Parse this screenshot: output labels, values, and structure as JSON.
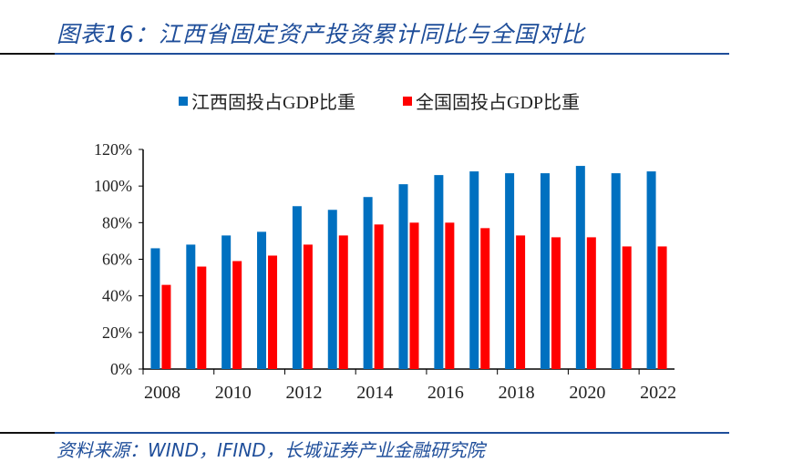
{
  "header": {
    "title": "图表16：江西省固定资产投资累计同比与全国对比"
  },
  "footer": {
    "source": "资料来源：WIND，IFIND，长城证券产业金融研究院"
  },
  "chart_data": {
    "type": "bar",
    "title": "",
    "xlabel": "",
    "ylabel": "",
    "categories": [
      "2008",
      "2009",
      "2010",
      "2011",
      "2012",
      "2013",
      "2014",
      "2015",
      "2016",
      "2017",
      "2018",
      "2019",
      "2020",
      "2021",
      "2022"
    ],
    "x_tick_labels": [
      "2008",
      "2010",
      "2012",
      "2014",
      "2016",
      "2018",
      "2020",
      "2022"
    ],
    "y_tick_labels": [
      "0%",
      "20%",
      "40%",
      "60%",
      "80%",
      "100%",
      "120%"
    ],
    "ylim": [
      0,
      120
    ],
    "unit": "%",
    "legend_position": "top",
    "grid": false,
    "series": [
      {
        "name": "江西固投占GDP比重",
        "color": "#0070c0",
        "values": [
          66,
          68,
          73,
          75,
          89,
          87,
          94,
          101,
          106,
          108,
          107,
          107,
          111,
          107,
          108
        ]
      },
      {
        "name": "全国固投占GDP比重",
        "color": "#ff0000",
        "values": [
          46,
          56,
          59,
          62,
          68,
          73,
          79,
          80,
          80,
          77,
          73,
          72,
          72,
          67,
          67
        ]
      }
    ]
  }
}
